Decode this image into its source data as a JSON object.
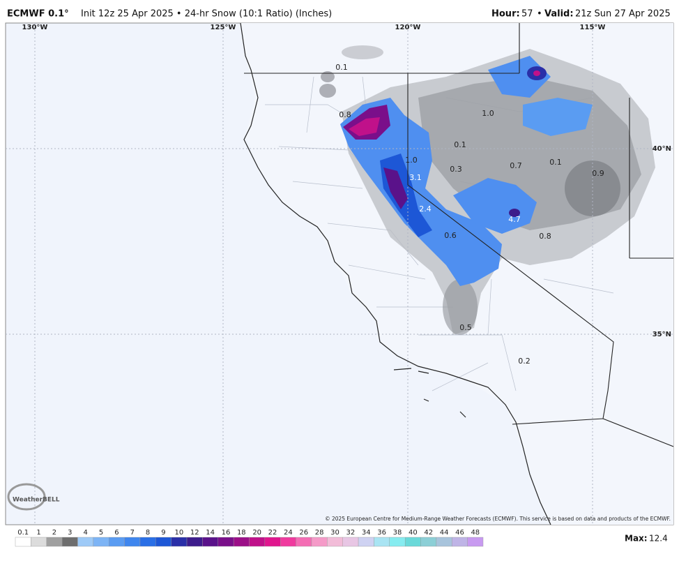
{
  "header": {
    "model": "ECMWF 0.1°",
    "subtitle": "Init 12z 25 Apr 2025 • 24-hr Snow (10:1 Ratio) (Inches)",
    "hour_label": "Hour:",
    "hour": "57",
    "separator": "•",
    "valid_label": "Valid:",
    "valid": "21z Sun 27 Apr 2025"
  },
  "map": {
    "longitudes": [
      "130°W",
      "125°W",
      "120°W",
      "115°W"
    ],
    "latitudes": [
      "40°N",
      "35°N"
    ],
    "point_labels": [
      "0.1",
      "0.8",
      "1.0",
      "0.1",
      "1.0",
      "0.3",
      "0.7",
      "0.1",
      "0.9",
      "3.1",
      "2.4",
      "4.7",
      "0.8",
      "0.6",
      "0.5",
      "0.2"
    ],
    "logo": "WeatherBELL",
    "copyright": "© 2025 European Centre for Medium-Range Weather Forecasts (ECMWF). This service is based on data and products of the ECMWF."
  },
  "legend": {
    "ticks": [
      0.1,
      1,
      2,
      3,
      4,
      5,
      6,
      7,
      8,
      9,
      10,
      12,
      14,
      16,
      18,
      20,
      22,
      24,
      26,
      28,
      30,
      32,
      34,
      36,
      38,
      40,
      42,
      44,
      46,
      48
    ],
    "colors": [
      "#ffffff",
      "#dcdcdc",
      "#a0a0a0",
      "#6e6e6e",
      "#9ecaf7",
      "#7db4f5",
      "#5a9cf2",
      "#3f86ee",
      "#2a6fe6",
      "#1d57d6",
      "#2a2fa8",
      "#3d1c8c",
      "#5a128a",
      "#7a0f8a",
      "#9c0f88",
      "#c0118a",
      "#e0168e",
      "#f03a9e",
      "#f46db4",
      "#f59ac8",
      "#f2bcd8",
      "#e8c6e4",
      "#cfd2f2",
      "#a9e4f3",
      "#86ecf0",
      "#6ad9d9",
      "#8ccfd6",
      "#a8c4dc",
      "#bfb4e6",
      "#c89af0"
    ],
    "max_label": "Max:",
    "max": "12.4"
  }
}
